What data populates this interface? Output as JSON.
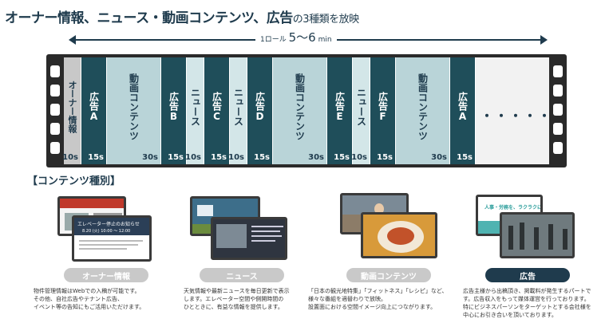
{
  "header": {
    "title_main": "オーナー情報、ニュース・動画コンテンツ、広告",
    "title_suffix": "の3種類を放映"
  },
  "timeline": {
    "prefix": "1ロール",
    "duration": "5〜6",
    "unit": "min"
  },
  "segments": [
    {
      "label": "オーナー情報",
      "duration": "10s",
      "kind": "owner"
    },
    {
      "label": "広告A",
      "duration": "15s",
      "kind": "ad"
    },
    {
      "label": "動画コンテンツ",
      "duration": "30s",
      "kind": "video"
    },
    {
      "label": "広告B",
      "duration": "15s",
      "kind": "ad"
    },
    {
      "label": "ニュース",
      "duration": "10s",
      "kind": "news"
    },
    {
      "label": "広告C",
      "duration": "15s",
      "kind": "ad"
    },
    {
      "label": "ニュース",
      "duration": "10s",
      "kind": "news"
    },
    {
      "label": "広告D",
      "duration": "15s",
      "kind": "ad"
    },
    {
      "label": "動画コンテンツ",
      "duration": "30s",
      "kind": "video"
    },
    {
      "label": "広告E",
      "duration": "15s",
      "kind": "ad"
    },
    {
      "label": "ニュース",
      "duration": "10s",
      "kind": "news"
    },
    {
      "label": "広告F",
      "duration": "15s",
      "kind": "ad"
    },
    {
      "label": "動画コンテンツ",
      "duration": "30s",
      "kind": "video"
    },
    {
      "label": "広告A",
      "duration": "15s",
      "kind": "ad"
    }
  ],
  "ellipsis": "・・・・・",
  "section_title": "【コンテンツ種別】",
  "cards": [
    {
      "pill": "オーナー情報",
      "screen_title": "エレベーター停止のお知らせ",
      "screen_date": "8.20 (火) 10:00 ～ 12:00",
      "desc": [
        "物件管理情報はWebでの入稿が可能です。",
        "その他、自社広告やテナント広告、",
        "イベント等の告知にもご活用いただけます。"
      ]
    },
    {
      "pill": "ニュース",
      "desc": [
        "天気情報や最新ニュースを毎日更新で表示",
        "します。エレベーター空間や側開時間の",
        "ひとときに、有益な情報を提供します。"
      ]
    },
    {
      "pill": "動画コンテンツ",
      "desc": [
        "「日本の観光地特集」「フィットネス」「レシピ」など、",
        "様々な番組を適替わりで放映。",
        "設置面における空間イメージ向上につながります。"
      ]
    },
    {
      "pill": "広告",
      "screen_title": "人事・労務を、ラクラクに。",
      "desc": [
        "広告主様から出稿頂き、掲載料が発生するパートで",
        "す。広告収入をもって媒体運営を行っております。",
        "特にビジネスパーソンをターゲットとする会社様を",
        "中心にお引き合いを頂いております。"
      ]
    }
  ],
  "colors": {
    "navy": "#1f3b4d",
    "ad_teal": "#1f4e5a",
    "video_light": "#b9d4d8",
    "news_light": "#d3e6e8",
    "owner_gray": "#c8c8c8",
    "film": "#2a2a2a"
  }
}
